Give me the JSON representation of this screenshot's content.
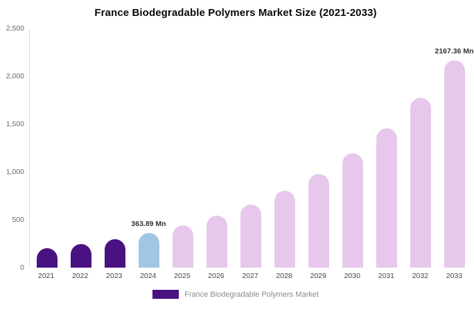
{
  "title": "France Biodegradable Polymers Market Size (2021-2033)",
  "legend": {
    "label": "France Biodegradable Polymers Market",
    "swatch_color": "#4a1182"
  },
  "colors": {
    "historical": "#4a1182",
    "base_year": "#9fc7e4",
    "forecast": "#e7c8ec",
    "background": "#ffffff"
  },
  "chart_data": {
    "type": "bar",
    "title": "France Biodegradable Polymers Market Size (2021-2033)",
    "categories": [
      "2021",
      "2022",
      "2023",
      "2024",
      "2025",
      "2026",
      "2027",
      "2028",
      "2029",
      "2030",
      "2031",
      "2032",
      "2033"
    ],
    "values": [
      201,
      245,
      299,
      363.89,
      444,
      541,
      659,
      804,
      980,
      1194,
      1456,
      1775,
      2167.36
    ],
    "unit": "Mn",
    "bar_colors": [
      "#4a1182",
      "#4a1182",
      "#4a1182",
      "#9fc7e4",
      "#e7c8ec",
      "#e7c8ec",
      "#e7c8ec",
      "#e7c8ec",
      "#e7c8ec",
      "#e7c8ec",
      "#e7c8ec",
      "#e7c8ec",
      "#e7c8ec"
    ],
    "point_labels": {
      "2024": "363.89 Mn",
      "2033": "2167.36 Mn"
    },
    "xlabel": "",
    "ylabel": "",
    "ylim": [
      0,
      2500
    ],
    "ytick_values": [
      0,
      500,
      1000,
      1500,
      2000,
      2500
    ],
    "yticks": [
      "0",
      "500",
      "1,000",
      "1,500",
      "2,000",
      "2,500"
    ],
    "grid": false,
    "legend_position": "bottom"
  }
}
